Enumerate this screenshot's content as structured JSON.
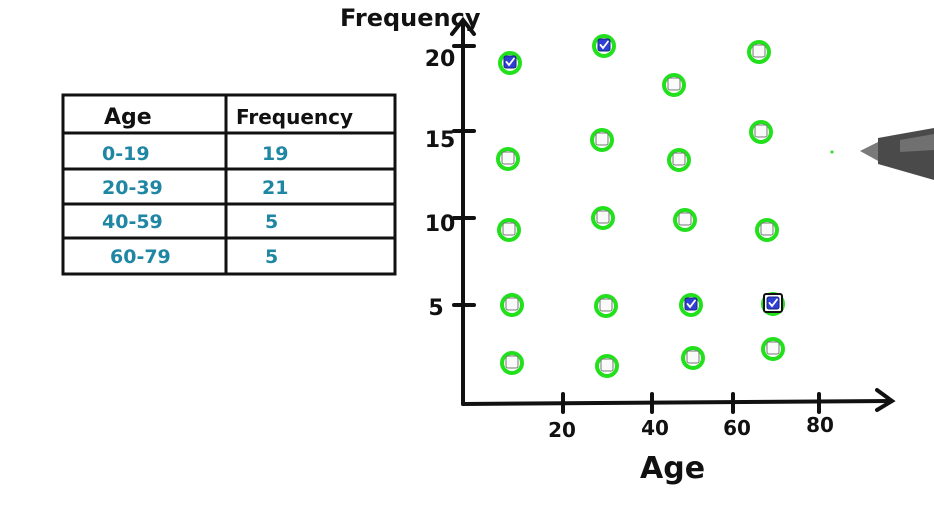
{
  "table": {
    "headers": [
      "Age",
      "Frequency"
    ],
    "rows": [
      [
        "0-19",
        "19"
      ],
      [
        "20-39",
        "21"
      ],
      [
        "40-59",
        "5"
      ],
      [
        "60-79",
        "5"
      ]
    ]
  },
  "plot": {
    "y_axis_title": "Frequency",
    "x_axis_title": "Age",
    "y_ticks": [
      "5",
      "10",
      "15",
      "20"
    ],
    "x_ticks": [
      "20",
      "40",
      "60",
      "80"
    ],
    "options": [
      {
        "id": "r20c1",
        "checked": true
      },
      {
        "id": "r20c2",
        "checked": true
      },
      {
        "id": "r20c3",
        "checked": false
      },
      {
        "id": "r20c4",
        "checked": false
      },
      {
        "id": "r15c1",
        "checked": false
      },
      {
        "id": "r15c2",
        "checked": false
      },
      {
        "id": "r15c3",
        "checked": false
      },
      {
        "id": "r15c4",
        "checked": false
      },
      {
        "id": "r10c1",
        "checked": false
      },
      {
        "id": "r10c2",
        "checked": false
      },
      {
        "id": "r10c3",
        "checked": false
      },
      {
        "id": "r10c4",
        "checked": false
      },
      {
        "id": "r5c1",
        "checked": false
      },
      {
        "id": "r5c2",
        "checked": false
      },
      {
        "id": "r5c3",
        "checked": true
      },
      {
        "id": "r5c4",
        "checked": true,
        "focused": true
      },
      {
        "id": "r0c1",
        "checked": false
      },
      {
        "id": "r0c2",
        "checked": false
      },
      {
        "id": "r0c3",
        "checked": false
      },
      {
        "id": "r0c4",
        "checked": false
      }
    ]
  },
  "colors": {
    "ink": "#111111",
    "table_values": "#1f86a3",
    "ring": "#22e01b",
    "check_fill": "#2f3fd6"
  },
  "icons": [
    "pen-icon",
    "checkbox-icon"
  ]
}
